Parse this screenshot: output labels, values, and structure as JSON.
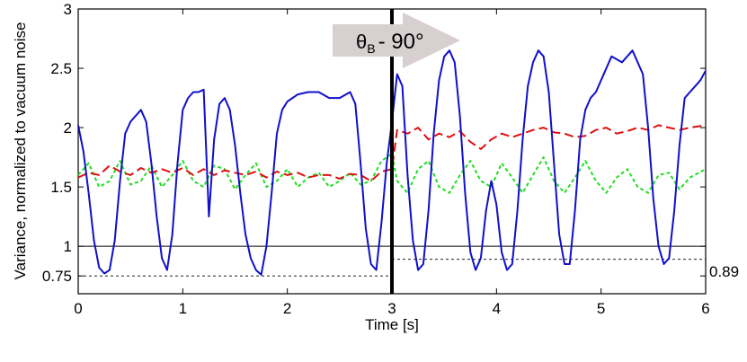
{
  "chart_data": {
    "type": "line",
    "xlabel": "Time [s]",
    "ylabel": "Variance, normalized to vacuum noise",
    "xlim": [
      0,
      6
    ],
    "ylim": [
      0.6,
      3.0
    ],
    "x_ticks": [
      "0",
      "1",
      "2",
      "3",
      "4",
      "5",
      "6"
    ],
    "y_ticks": [
      "0.75",
      "1",
      "1.5",
      "2",
      "2.5",
      "3"
    ],
    "annotation_right": "0.89",
    "arrow_label": "θB - 90°",
    "arrow_label_main": "θ",
    "arrow_label_sub": "B",
    "arrow_label_rest": "- 90°",
    "divider_x": 3.0,
    "reference_lines": [
      {
        "y": 1.0,
        "style": "solid",
        "x_range": [
          0,
          6
        ]
      },
      {
        "y": 0.75,
        "style": "dashed",
        "x_range": [
          0,
          3
        ]
      },
      {
        "y": 0.89,
        "style": "dashed",
        "x_range": [
          3,
          6
        ]
      }
    ],
    "series": [
      {
        "color": "#1010cc",
        "dash": "solid",
        "x": [
          0.0,
          0.05,
          0.1,
          0.15,
          0.2,
          0.25,
          0.3,
          0.35,
          0.4,
          0.45,
          0.5,
          0.55,
          0.6,
          0.65,
          0.7,
          0.75,
          0.8,
          0.85,
          0.9,
          0.95,
          1.0,
          1.05,
          1.1,
          1.15,
          1.2,
          1.25,
          1.3,
          1.35,
          1.4,
          1.45,
          1.5,
          1.55,
          1.6,
          1.65,
          1.7,
          1.75,
          1.8,
          1.85,
          1.9,
          1.95,
          2.0,
          2.1,
          2.2,
          2.3,
          2.4,
          2.5,
          2.6,
          2.65,
          2.7,
          2.75,
          2.8,
          2.85,
          2.9,
          2.95,
          3.0,
          3.05,
          3.1,
          3.15,
          3.2,
          3.25,
          3.3,
          3.35,
          3.4,
          3.45,
          3.5,
          3.55,
          3.6,
          3.65,
          3.7,
          3.75,
          3.8,
          3.85,
          3.9,
          3.95,
          4.0,
          4.05,
          4.1,
          4.15,
          4.2,
          4.25,
          4.3,
          4.35,
          4.4,
          4.45,
          4.5,
          4.55,
          4.6,
          4.65,
          4.7,
          4.75,
          4.8,
          4.85,
          4.9,
          4.95,
          5.0,
          5.1,
          5.2,
          5.3,
          5.4,
          5.45,
          5.5,
          5.55,
          5.6,
          5.65,
          5.7,
          5.75,
          5.8,
          5.85,
          5.9,
          5.95,
          6.0
        ],
        "y": [
          2.02,
          1.8,
          1.45,
          1.05,
          0.82,
          0.77,
          0.8,
          1.05,
          1.55,
          1.95,
          2.05,
          2.1,
          2.15,
          2.05,
          1.7,
          1.25,
          0.9,
          0.8,
          1.1,
          1.7,
          2.15,
          2.25,
          2.3,
          2.3,
          2.32,
          1.25,
          1.9,
          2.2,
          2.25,
          2.15,
          1.85,
          1.45,
          1.1,
          0.9,
          0.8,
          0.76,
          1.0,
          1.45,
          1.95,
          2.15,
          2.22,
          2.28,
          2.3,
          2.3,
          2.25,
          2.25,
          2.3,
          2.2,
          1.7,
          1.15,
          0.85,
          0.8,
          1.2,
          1.7,
          2.05,
          2.45,
          2.35,
          1.6,
          1.05,
          0.8,
          0.85,
          1.3,
          1.95,
          2.4,
          2.6,
          2.65,
          2.55,
          2.1,
          1.45,
          0.95,
          0.8,
          0.9,
          1.3,
          1.55,
          1.35,
          0.95,
          0.8,
          0.85,
          1.3,
          1.9,
          2.35,
          2.55,
          2.65,
          2.6,
          2.3,
          1.7,
          1.1,
          0.85,
          0.85,
          1.3,
          1.9,
          2.15,
          2.25,
          2.3,
          2.4,
          2.6,
          2.55,
          2.65,
          2.45,
          2.0,
          1.4,
          1.0,
          0.85,
          0.9,
          1.3,
          1.85,
          2.25,
          2.3,
          2.35,
          2.4,
          2.48
        ]
      },
      {
        "color": "#dd1010",
        "dash": "10,5",
        "x": [
          0.0,
          0.1,
          0.2,
          0.3,
          0.4,
          0.5,
          0.6,
          0.7,
          0.8,
          0.9,
          1.0,
          1.1,
          1.2,
          1.3,
          1.4,
          1.5,
          1.6,
          1.7,
          1.8,
          1.9,
          2.0,
          2.1,
          2.2,
          2.3,
          2.4,
          2.5,
          2.6,
          2.7,
          2.8,
          2.9,
          3.0,
          3.05,
          3.15,
          3.25,
          3.35,
          3.45,
          3.55,
          3.65,
          3.75,
          3.85,
          3.95,
          4.05,
          4.15,
          4.25,
          4.35,
          4.45,
          4.55,
          4.65,
          4.75,
          4.85,
          4.95,
          5.05,
          5.15,
          5.25,
          5.35,
          5.45,
          5.55,
          5.65,
          5.75,
          5.85,
          6.0
        ],
        "y": [
          1.58,
          1.62,
          1.6,
          1.68,
          1.63,
          1.6,
          1.66,
          1.62,
          1.65,
          1.62,
          1.66,
          1.6,
          1.65,
          1.6,
          1.64,
          1.62,
          1.6,
          1.63,
          1.58,
          1.63,
          1.6,
          1.62,
          1.58,
          1.6,
          1.6,
          1.57,
          1.61,
          1.6,
          1.55,
          1.63,
          1.65,
          1.98,
          1.95,
          2.0,
          1.9,
          1.95,
          1.92,
          1.97,
          1.88,
          1.82,
          1.9,
          1.95,
          1.92,
          1.95,
          1.98,
          2.0,
          1.96,
          1.95,
          1.92,
          1.93,
          1.98,
          2.0,
          1.95,
          1.97,
          2.0,
          1.98,
          2.02,
          2.0,
          1.98,
          2.0,
          2.02
        ]
      },
      {
        "color": "#22dd22",
        "dash": "4,3",
        "x": [
          0.0,
          0.1,
          0.2,
          0.3,
          0.4,
          0.5,
          0.6,
          0.7,
          0.8,
          0.9,
          1.0,
          1.1,
          1.2,
          1.3,
          1.4,
          1.5,
          1.6,
          1.7,
          1.8,
          1.9,
          2.0,
          2.1,
          2.2,
          2.3,
          2.4,
          2.5,
          2.6,
          2.7,
          2.8,
          2.9,
          3.0,
          3.05,
          3.15,
          3.25,
          3.35,
          3.45,
          3.55,
          3.65,
          3.75,
          3.85,
          3.95,
          4.05,
          4.15,
          4.25,
          4.35,
          4.45,
          4.55,
          4.65,
          4.75,
          4.85,
          4.95,
          5.05,
          5.15,
          5.25,
          5.35,
          5.45,
          5.55,
          5.65,
          5.75,
          5.85,
          6.0
        ],
        "y": [
          1.6,
          1.7,
          1.5,
          1.55,
          1.72,
          1.52,
          1.55,
          1.68,
          1.5,
          1.6,
          1.72,
          1.55,
          1.5,
          1.68,
          1.65,
          1.48,
          1.6,
          1.7,
          1.5,
          1.55,
          1.65,
          1.5,
          1.58,
          1.62,
          1.5,
          1.55,
          1.62,
          1.52,
          1.55,
          1.72,
          1.78,
          1.55,
          1.45,
          1.65,
          1.72,
          1.5,
          1.45,
          1.6,
          1.72,
          1.55,
          1.5,
          1.7,
          1.58,
          1.45,
          1.6,
          1.75,
          1.55,
          1.45,
          1.58,
          1.72,
          1.55,
          1.45,
          1.58,
          1.65,
          1.5,
          1.45,
          1.6,
          1.62,
          1.48,
          1.58,
          1.65
        ]
      }
    ]
  }
}
